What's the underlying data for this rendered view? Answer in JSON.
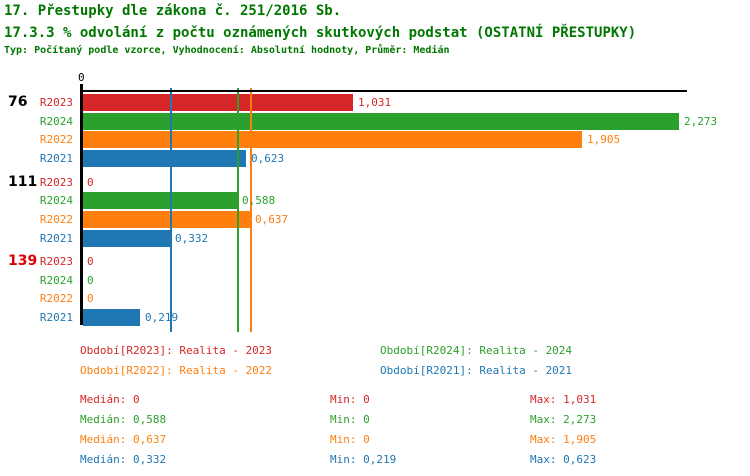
{
  "header": {
    "title": "17. Přestupky dle zákona č. 251/2016 Sb.",
    "subtitle": "17.3.3 % odvolání z počtu oznámených skutkových podstat (OSTATNÍ PŘESTUPKY)",
    "meta": "Typ: Počítaný podle vzorce, Vyhodnocení: Absolutní hodnoty, Průměr: Medián",
    "title_color": "#007700"
  },
  "chart_data": {
    "type": "bar",
    "orientation": "horizontal",
    "title": "17.3.3 % odvolání z počtu oznámených skutkových podstat (OSTATNÍ PŘESTUPKY)",
    "axis": {
      "tick_label": "0",
      "x_min": 0,
      "x_max": 2.32,
      "grid": "median-lines-only"
    },
    "series": [
      {
        "id": "R2023",
        "name": "Realita - 2023",
        "color": "#d62728"
      },
      {
        "id": "R2024",
        "name": "Realita - 2024",
        "color": "#2ca02c"
      },
      {
        "id": "R2022",
        "name": "Realita - 2022",
        "color": "#ff7f0e"
      },
      {
        "id": "R2021",
        "name": "Realita - 2021",
        "color": "#1f77b4"
      }
    ],
    "groups": [
      {
        "label": "76",
        "label_color": "#000000",
        "values": [
          {
            "series": "R2023",
            "value": 1.031,
            "display": "1,031"
          },
          {
            "series": "R2024",
            "value": 2.273,
            "display": "2,273"
          },
          {
            "series": "R2022",
            "value": 1.905,
            "display": "1,905"
          },
          {
            "series": "R2021",
            "value": 0.623,
            "display": "0,623"
          }
        ]
      },
      {
        "label": "111",
        "label_color": "#000000",
        "values": [
          {
            "series": "R2023",
            "value": 0,
            "display": "0"
          },
          {
            "series": "R2024",
            "value": 0.588,
            "display": "0,588"
          },
          {
            "series": "R2022",
            "value": 0.637,
            "display": "0,637"
          },
          {
            "series": "R2021",
            "value": 0.332,
            "display": "0,332"
          }
        ]
      },
      {
        "label": "139",
        "label_color": "#dd0000",
        "values": [
          {
            "series": "R2023",
            "value": 0,
            "display": "0"
          },
          {
            "series": "R2024",
            "value": 0,
            "display": "0"
          },
          {
            "series": "R2022",
            "value": 0,
            "display": "0"
          },
          {
            "series": "R2021",
            "value": 0.219,
            "display": "0,219"
          }
        ]
      }
    ],
    "median_lines": [
      {
        "series": "R2023",
        "value": 0
      },
      {
        "series": "R2024",
        "value": 0.588
      },
      {
        "series": "R2022",
        "value": 0.637
      },
      {
        "series": "R2021",
        "value": 0.332
      }
    ]
  },
  "legend": {
    "items": [
      {
        "label": "Období[R2023]: Realita - 2023",
        "color": "#d62728"
      },
      {
        "label": "Období[R2024]: Realita - 2024",
        "color": "#2ca02c"
      },
      {
        "label": "Období[R2022]: Realita - 2022",
        "color": "#ff7f0e"
      },
      {
        "label": "Období[R2021]: Realita - 2021",
        "color": "#1f77b4"
      }
    ]
  },
  "stats": {
    "rows": [
      {
        "color": "#d62728",
        "median": "Medián: 0",
        "min": "Min: 0",
        "max": "Max: 1,031"
      },
      {
        "color": "#2ca02c",
        "median": "Medián: 0,588",
        "min": "Min: 0",
        "max": "Max: 2,273"
      },
      {
        "color": "#ff7f0e",
        "median": "Medián: 0,637",
        "min": "Min: 0",
        "max": "Max: 1,905"
      },
      {
        "color": "#1f77b4",
        "median": "Medián: 0,332",
        "min": "Min: 0,219",
        "max": "Max: 0,623"
      }
    ]
  }
}
